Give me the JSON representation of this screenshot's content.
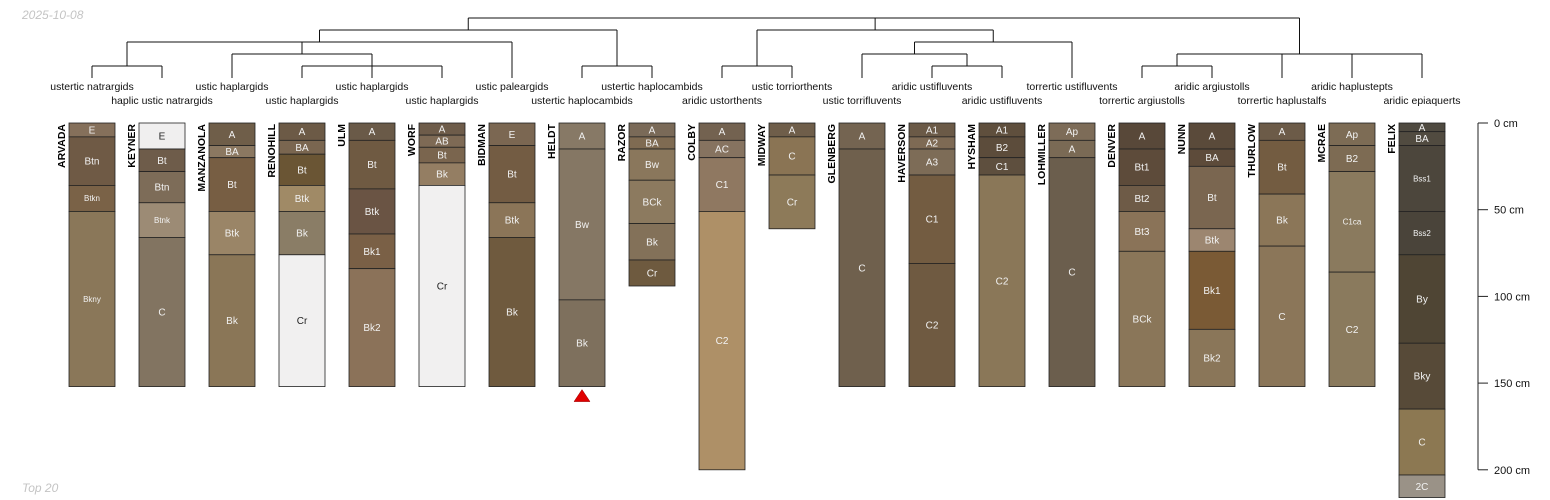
{
  "date": "2025-10-08",
  "footer": "Top 20",
  "depth_unit": "cm",
  "depth_axis_ticks": [
    0,
    50,
    100,
    150,
    200
  ],
  "depth_axis_labels": [
    "0 cm",
    "50 cm",
    "100 cm",
    "150 cm",
    "200 cm"
  ],
  "profiles": [
    {
      "name": "ARVADA",
      "taxon": "ustertic natrargids",
      "horizons": [
        {
          "name": "E",
          "top": 0,
          "bottom": 8,
          "color": "#85705b"
        },
        {
          "name": "Btn",
          "top": 8,
          "bottom": 36,
          "color": "#6f5a45"
        },
        {
          "name": "Btkn",
          "top": 36,
          "bottom": 51,
          "color": "#7a6247"
        },
        {
          "name": "Bkny",
          "top": 51,
          "bottom": 152,
          "color": "#8a7759"
        }
      ]
    },
    {
      "name": "KEYNER",
      "taxon": "haplic ustic natrargids",
      "horizons": [
        {
          "name": "E",
          "top": 0,
          "bottom": 15,
          "color": "#f0efef"
        },
        {
          "name": "Bt",
          "top": 15,
          "bottom": 28,
          "color": "#6e5c4a"
        },
        {
          "name": "Btn",
          "top": 28,
          "bottom": 46,
          "color": "#7d6c58"
        },
        {
          "name": "Btnk",
          "top": 46,
          "bottom": 66,
          "color": "#9c8b75"
        },
        {
          "name": "C",
          "top": 66,
          "bottom": 152,
          "color": "#827461"
        }
      ]
    },
    {
      "name": "MANZANOLA",
      "taxon": "ustic haplargids",
      "horizons": [
        {
          "name": "A",
          "top": 0,
          "bottom": 13,
          "color": "#6f5e49"
        },
        {
          "name": "BA",
          "top": 13,
          "bottom": 20,
          "color": "#8b7861"
        },
        {
          "name": "Bt",
          "top": 20,
          "bottom": 51,
          "color": "#775e43"
        },
        {
          "name": "Btk",
          "top": 51,
          "bottom": 76,
          "color": "#9a8567"
        },
        {
          "name": "Bk",
          "top": 76,
          "bottom": 152,
          "color": "#8a7657"
        }
      ]
    },
    {
      "name": "RENOHILL",
      "taxon": "ustic haplargids",
      "horizons": [
        {
          "name": "A",
          "top": 0,
          "bottom": 10,
          "color": "#6c5a46"
        },
        {
          "name": "BA",
          "top": 10,
          "bottom": 18,
          "color": "#7a6650"
        },
        {
          "name": "Bt",
          "top": 18,
          "bottom": 36,
          "color": "#6a5534"
        },
        {
          "name": "Btk",
          "top": 36,
          "bottom": 51,
          "color": "#a08a66"
        },
        {
          "name": "Bk",
          "top": 51,
          "bottom": 76,
          "color": "#8a7d66"
        },
        {
          "name": "Cr",
          "top": 76,
          "bottom": 152,
          "color": "#f1f0f0"
        }
      ]
    },
    {
      "name": "ULM",
      "taxon": "ustic haplargids",
      "horizons": [
        {
          "name": "A",
          "top": 0,
          "bottom": 10,
          "color": "#6a5a48"
        },
        {
          "name": "Bt",
          "top": 10,
          "bottom": 38,
          "color": "#6f5a42"
        },
        {
          "name": "Btk",
          "top": 38,
          "bottom": 64,
          "color": "#6a5444"
        },
        {
          "name": "Bk1",
          "top": 64,
          "bottom": 84,
          "color": "#7a6046"
        },
        {
          "name": "Bk2",
          "top": 84,
          "bottom": 152,
          "color": "#8b7259"
        }
      ]
    },
    {
      "name": "WORF",
      "taxon": "ustic haplargids",
      "horizons": [
        {
          "name": "A",
          "top": 0,
          "bottom": 7,
          "color": "#6e5c4a"
        },
        {
          "name": "AB",
          "top": 7,
          "bottom": 14,
          "color": "#7e6a55"
        },
        {
          "name": "Bt",
          "top": 14,
          "bottom": 23,
          "color": "#7a654e"
        },
        {
          "name": "Bk",
          "top": 23,
          "bottom": 36,
          "color": "#947e63"
        },
        {
          "name": "Cr",
          "top": 36,
          "bottom": 152,
          "color": "#f1f0f0"
        }
      ]
    },
    {
      "name": "BIDMAN",
      "taxon": "ustic paleargids",
      "horizons": [
        {
          "name": "E",
          "top": 0,
          "bottom": 13,
          "color": "#7b6752"
        },
        {
          "name": "Bt",
          "top": 13,
          "bottom": 46,
          "color": "#735c43"
        },
        {
          "name": "Btk",
          "top": 46,
          "bottom": 66,
          "color": "#8b7558"
        },
        {
          "name": "Bk",
          "top": 66,
          "bottom": 152,
          "color": "#6f5a3e"
        }
      ]
    },
    {
      "name": "HELDT",
      "taxon": "ustertic haplocambids",
      "truncated": true,
      "horizons": [
        {
          "name": "A",
          "top": 0,
          "bottom": 15,
          "color": "#877966"
        },
        {
          "name": "Bw",
          "top": 15,
          "bottom": 102,
          "color": "#857764"
        },
        {
          "name": "Bk",
          "top": 102,
          "bottom": 152,
          "color": "#7e705d"
        }
      ]
    },
    {
      "name": "RAZOR",
      "taxon": "ustertic haplocambids",
      "horizons": [
        {
          "name": "A",
          "top": 0,
          "bottom": 8,
          "color": "#7a6a58"
        },
        {
          "name": "BA",
          "top": 8,
          "bottom": 15,
          "color": "#7f6b52"
        },
        {
          "name": "Bw",
          "top": 15,
          "bottom": 33,
          "color": "#8a775c"
        },
        {
          "name": "BCk",
          "top": 33,
          "bottom": 58,
          "color": "#8c7a5f"
        },
        {
          "name": "Bk",
          "top": 58,
          "bottom": 79,
          "color": "#837159"
        },
        {
          "name": "Cr",
          "top": 79,
          "bottom": 94,
          "color": "#6e5a3f"
        }
      ]
    },
    {
      "name": "COLBY",
      "taxon": "aridic ustorthents",
      "horizons": [
        {
          "name": "A",
          "top": 0,
          "bottom": 10,
          "color": "#736250"
        },
        {
          "name": "AC",
          "top": 10,
          "bottom": 20,
          "color": "#867360"
        },
        {
          "name": "C1",
          "top": 20,
          "bottom": 51,
          "color": "#8f7861"
        },
        {
          "name": "C2",
          "top": 51,
          "bottom": 200,
          "color": "#ae9067"
        }
      ]
    },
    {
      "name": "MIDWAY",
      "taxon": "ustic torriorthents",
      "horizons": [
        {
          "name": "A",
          "top": 0,
          "bottom": 8,
          "color": "#6f5e4a"
        },
        {
          "name": "C",
          "top": 8,
          "bottom": 30,
          "color": "#8a7454"
        },
        {
          "name": "Cr",
          "top": 30,
          "bottom": 61,
          "color": "#8d7a59"
        }
      ]
    },
    {
      "name": "GLENBERG",
      "taxon": "ustic torrifluvents",
      "horizons": [
        {
          "name": "A",
          "top": 0,
          "bottom": 15,
          "color": "#746451"
        },
        {
          "name": "C",
          "top": 15,
          "bottom": 152,
          "color": "#6f604d"
        }
      ]
    },
    {
      "name": "HAVERSON",
      "taxon": "aridic ustifluvents",
      "horizons": [
        {
          "name": "A1",
          "top": 0,
          "bottom": 8,
          "color": "#6b5a47"
        },
        {
          "name": "A2",
          "top": 8,
          "bottom": 15,
          "color": "#7e6a54"
        },
        {
          "name": "A3",
          "top": 15,
          "bottom": 30,
          "color": "#7d6c57"
        },
        {
          "name": "C1",
          "top": 30,
          "bottom": 81,
          "color": "#735c41"
        },
        {
          "name": "C2",
          "top": 81,
          "bottom": 152,
          "color": "#6f5a41"
        }
      ]
    },
    {
      "name": "HYSHAM",
      "taxon": "aridic ustifluvents",
      "horizons": [
        {
          "name": "A1",
          "top": 0,
          "bottom": 8,
          "color": "#5f4f3d"
        },
        {
          "name": "B2",
          "top": 8,
          "bottom": 20,
          "color": "#5c4c3b"
        },
        {
          "name": "C1",
          "top": 20,
          "bottom": 30,
          "color": "#5e4f3e"
        },
        {
          "name": "C2",
          "top": 30,
          "bottom": 152,
          "color": "#8a7758"
        }
      ]
    },
    {
      "name": "LOHMILLER",
      "taxon": "torrertic ustifluvents",
      "horizons": [
        {
          "name": "Ap",
          "top": 0,
          "bottom": 10,
          "color": "#7d6c58"
        },
        {
          "name": "A",
          "top": 10,
          "bottom": 20,
          "color": "#7a6a55"
        },
        {
          "name": "C",
          "top": 20,
          "bottom": 152,
          "color": "#6b5e4d"
        }
      ]
    },
    {
      "name": "DENVER",
      "taxon": "torrertic argiustolls",
      "horizons": [
        {
          "name": "A",
          "top": 0,
          "bottom": 15,
          "color": "#584839"
        },
        {
          "name": "Bt1",
          "top": 15,
          "bottom": 36,
          "color": "#5d4b3a"
        },
        {
          "name": "Bt2",
          "top": 36,
          "bottom": 51,
          "color": "#6e5b47"
        },
        {
          "name": "Bt3",
          "top": 51,
          "bottom": 74,
          "color": "#8a7358"
        },
        {
          "name": "BCk",
          "top": 74,
          "bottom": 152,
          "color": "#8a7659"
        }
      ]
    },
    {
      "name": "NUNN",
      "taxon": "aridic argiustolls",
      "horizons": [
        {
          "name": "A",
          "top": 0,
          "bottom": 15,
          "color": "#5a4a3a"
        },
        {
          "name": "BA",
          "top": 15,
          "bottom": 25,
          "color": "#5d4b3a"
        },
        {
          "name": "Bt",
          "top": 25,
          "bottom": 61,
          "color": "#7a6650"
        },
        {
          "name": "Btk",
          "top": 61,
          "bottom": 74,
          "color": "#9c8670"
        },
        {
          "name": "Bk1",
          "top": 74,
          "bottom": 119,
          "color": "#7a5a35"
        },
        {
          "name": "Bk2",
          "top": 119,
          "bottom": 152,
          "color": "#8a7659"
        }
      ]
    },
    {
      "name": "THURLOW",
      "taxon": "torrertic haplustalfs",
      "horizons": [
        {
          "name": "A",
          "top": 0,
          "bottom": 10,
          "color": "#6c5b48"
        },
        {
          "name": "Bt",
          "top": 10,
          "bottom": 41,
          "color": "#735c41"
        },
        {
          "name": "Bk",
          "top": 41,
          "bottom": 71,
          "color": "#8b7658"
        },
        {
          "name": "C",
          "top": 71,
          "bottom": 152,
          "color": "#8b7659"
        }
      ]
    },
    {
      "name": "MCRAE",
      "taxon": "aridic haplustepts",
      "horizons": [
        {
          "name": "Ap",
          "top": 0,
          "bottom": 13,
          "color": "#7d6c55"
        },
        {
          "name": "B2",
          "top": 13,
          "bottom": 28,
          "color": "#7d6b53"
        },
        {
          "name": "C1ca",
          "top": 28,
          "bottom": 86,
          "color": "#8a7a5e"
        },
        {
          "name": "C2",
          "top": 86,
          "bottom": 152,
          "color": "#8a7a5d"
        }
      ]
    },
    {
      "name": "FELIX",
      "taxon": "aridic epiaquerts",
      "horizons": [
        {
          "name": "A",
          "top": 0,
          "bottom": 5,
          "color": "#4f4a40"
        },
        {
          "name": "BA",
          "top": 5,
          "bottom": 13,
          "color": "#514b40"
        },
        {
          "name": "Bss1",
          "top": 13,
          "bottom": 51,
          "color": "#4c463c"
        },
        {
          "name": "Bss2",
          "top": 51,
          "bottom": 76,
          "color": "#4a443a"
        },
        {
          "name": "By",
          "top": 76,
          "bottom": 127,
          "color": "#4f4534"
        },
        {
          "name": "Bky",
          "top": 127,
          "bottom": 165,
          "color": "#574a38"
        },
        {
          "name": "C",
          "top": 165,
          "bottom": 203,
          "color": "#8c7852"
        },
        {
          "name": "2C",
          "top": 203,
          "bottom": 216,
          "color": "#9a9287"
        }
      ]
    }
  ]
}
